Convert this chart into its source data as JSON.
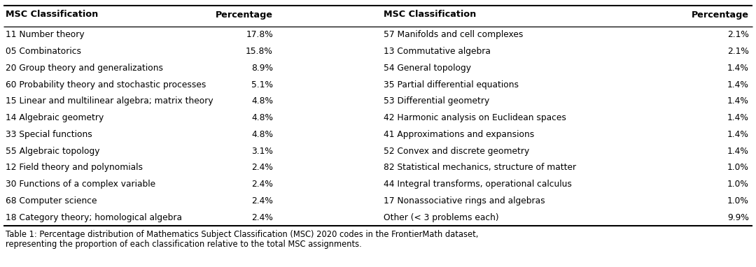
{
  "left_col": [
    [
      "11 Number theory",
      "17.8%"
    ],
    [
      "05 Combinatorics",
      "15.8%"
    ],
    [
      "20 Group theory and generalizations",
      "8.9%"
    ],
    [
      "60 Probability theory and stochastic processes",
      "5.1%"
    ],
    [
      "15 Linear and multilinear algebra; matrix theory",
      "4.8%"
    ],
    [
      "14 Algebraic geometry",
      "4.8%"
    ],
    [
      "33 Special functions",
      "4.8%"
    ],
    [
      "55 Algebraic topology",
      "3.1%"
    ],
    [
      "12 Field theory and polynomials",
      "2.4%"
    ],
    [
      "30 Functions of a complex variable",
      "2.4%"
    ],
    [
      "68 Computer science",
      "2.4%"
    ],
    [
      "18 Category theory; homological algebra",
      "2.4%"
    ]
  ],
  "right_col": [
    [
      "57 Manifolds and cell complexes",
      "2.1%"
    ],
    [
      "13 Commutative algebra",
      "2.1%"
    ],
    [
      "54 General topology",
      "1.4%"
    ],
    [
      "35 Partial differential equations",
      "1.4%"
    ],
    [
      "53 Differential geometry",
      "1.4%"
    ],
    [
      "42 Harmonic analysis on Euclidean spaces",
      "1.4%"
    ],
    [
      "41 Approximations and expansions",
      "1.4%"
    ],
    [
      "52 Convex and discrete geometry",
      "1.4%"
    ],
    [
      "82 Statistical mechanics, structure of matter",
      "1.0%"
    ],
    [
      "44 Integral transforms, operational calculus",
      "1.0%"
    ],
    [
      "17 Nonassociative rings and algebras",
      "1.0%"
    ],
    [
      "Other (< 3 problems each)",
      "9.9%"
    ]
  ],
  "header_left_class": "MSC Classification",
  "header_left_pct": "Percentage",
  "header_right_class": "MSC Classification",
  "header_right_pct": "Percentage",
  "caption_line1": "Table 1: Percentage distribution of Mathematics Subject Classification (MSC) 2020 codes in the FrontierMath dataset,",
  "caption_line2": "representing the proportion of each classification relative to the total MSC assignments.",
  "bg_color": "#ffffff",
  "text_color": "#000000",
  "header_fontsize": 9.2,
  "body_fontsize": 8.8,
  "caption_fontsize": 8.3
}
